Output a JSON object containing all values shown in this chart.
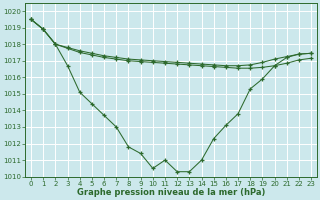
{
  "x": [
    0,
    1,
    2,
    3,
    4,
    5,
    6,
    7,
    8,
    9,
    10,
    11,
    12,
    13,
    14,
    15,
    16,
    17,
    18,
    19,
    20,
    21,
    22,
    23
  ],
  "line1": [
    1019.5,
    1018.9,
    1018.0,
    1017.8,
    1017.6,
    1017.45,
    1017.3,
    1017.2,
    1017.1,
    1017.05,
    1017.0,
    1016.95,
    1016.9,
    1016.85,
    1016.8,
    1016.75,
    1016.7,
    1016.7,
    1016.75,
    1016.9,
    1017.1,
    1017.25,
    1017.4,
    1017.45
  ],
  "line2": [
    1019.5,
    1018.9,
    1018.0,
    1017.75,
    1017.5,
    1017.35,
    1017.2,
    1017.1,
    1017.0,
    1016.95,
    1016.9,
    1016.85,
    1016.8,
    1016.75,
    1016.7,
    1016.65,
    1016.6,
    1016.55,
    1016.55,
    1016.6,
    1016.7,
    1016.85,
    1017.05,
    1017.15
  ],
  "line3": [
    1019.5,
    1018.9,
    1018.0,
    1016.7,
    1015.1,
    1014.4,
    1013.7,
    1013.0,
    1011.8,
    1011.4,
    1010.5,
    1011.0,
    1010.3,
    1010.3,
    1011.0,
    1012.3,
    1013.1,
    1013.8,
    1015.3,
    1015.9,
    1016.7,
    1017.2,
    1017.4,
    1017.45
  ],
  "ylim": [
    1010,
    1020
  ],
  "xlim": [
    0,
    23
  ],
  "bg_color": "#cce8ec",
  "line_color": "#2d6a2d",
  "grid_color": "#ffffff",
  "xlabel": "Graphe pression niveau de la mer (hPa)"
}
